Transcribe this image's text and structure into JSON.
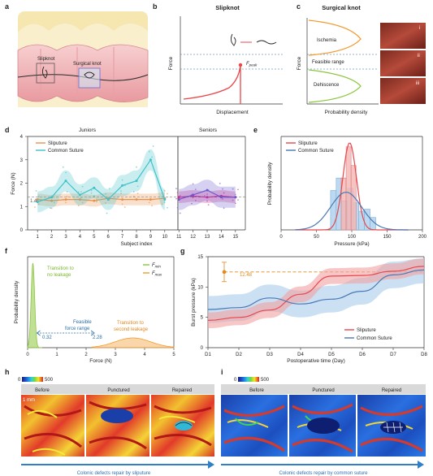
{
  "labels": {
    "a": "a",
    "b": "b",
    "c": "c",
    "d": "d",
    "e": "e",
    "f": "f",
    "g": "g",
    "h": "h",
    "i": "i"
  },
  "panel_a": {
    "slipknot": "Slipknot",
    "surgical": "Surgical knot"
  },
  "panel_b": {
    "title": "Slipknot",
    "xlabel": "Displacement",
    "ylabel": "Force",
    "peak": "F",
    "peak_sub": "peak",
    "colors": {
      "curve": "#e8474c",
      "dash": "#2b6fa8"
    }
  },
  "panel_c": {
    "title": "Surgical knot",
    "xlabel": "Probability density",
    "ylabel": "Force",
    "regions": [
      "Ischemia",
      "Feasible range",
      "Dehiscence"
    ],
    "roman": [
      "i",
      "ii",
      "iii"
    ],
    "colors": {
      "top": "#f29a2e",
      "bottom": "#8cc63f"
    }
  },
  "chart_data": [
    {
      "panel": "d",
      "type": "line",
      "section_titles": [
        "Juniors",
        "Seniors"
      ],
      "xlabel": "Subject index",
      "ylabel": "Force (N)",
      "x": [
        1,
        2,
        3,
        4,
        5,
        6,
        7,
        8,
        9,
        10,
        11,
        12,
        13,
        14,
        15
      ],
      "xlim": [
        0.3,
        15.7
      ],
      "ylim": [
        0,
        4
      ],
      "yticks": [
        0,
        1,
        2,
        3,
        4
      ],
      "reference_label": "1.4",
      "reference_value": 1.4,
      "series": [
        {
          "name": "Sliputure",
          "color": "#e8914a",
          "values": [
            1.3,
            1.25,
            1.3,
            1.3,
            1.25,
            1.35,
            1.3,
            1.3,
            1.3,
            1.35,
            1.4,
            1.45,
            1.4,
            1.45,
            1.4
          ],
          "band": 0.25
        },
        {
          "name": "Common Suture",
          "color": "#3fc1c9",
          "values": [
            1.2,
            1.4,
            2.1,
            1.5,
            1.8,
            1.3,
            1.9,
            2.1,
            3.0,
            1.3,
            1.3,
            1.5,
            1.7,
            1.4,
            1.4
          ],
          "band": 0.45
        }
      ],
      "senior_colors": {
        "sliputure": "#d7268a",
        "suture": "#6a5acd"
      }
    },
    {
      "panel": "e",
      "type": "bar",
      "xlabel": "Pressure (kPa)",
      "ylabel": "Probability density",
      "xlim": [
        0,
        200
      ],
      "xticks": [
        0,
        50,
        100,
        150,
        200
      ],
      "ylim": [
        0,
        0.045
      ],
      "series": [
        {
          "name": "Sliputure",
          "color": "#e8474c",
          "mean": 97,
          "sd": 9.5
        },
        {
          "name": "Common Suture",
          "color": "#4a78b5",
          "mean": 92,
          "sd": 22
        }
      ],
      "hist_sliputure": [
        {
          "x0": 85,
          "x1": 92,
          "h": 0.025
        },
        {
          "x0": 92,
          "x1": 99,
          "h": 0.04
        },
        {
          "x0": 99,
          "x1": 106,
          "h": 0.031
        }
      ],
      "hist_suture": [
        {
          "x0": 70,
          "x1": 78,
          "h": 0.019
        },
        {
          "x0": 78,
          "x1": 86,
          "h": 0.025
        },
        {
          "x0": 86,
          "x1": 94,
          "h": 0.014
        },
        {
          "x0": 94,
          "x1": 102,
          "h": 0.02
        },
        {
          "x0": 102,
          "x1": 110,
          "h": 0.013
        },
        {
          "x0": 110,
          "x1": 118,
          "h": 0.009
        },
        {
          "x0": 118,
          "x1": 126,
          "h": 0.01
        },
        {
          "x0": 126,
          "x1": 134,
          "h": 0.006
        }
      ]
    },
    {
      "panel": "f",
      "type": "area",
      "xlabel": "Force (N)",
      "ylabel": "Probability density",
      "xlim": [
        0,
        5
      ],
      "xticks": [
        0,
        1,
        2,
        3,
        4,
        5
      ],
      "legend": [
        {
          "name": "F",
          "sub": "min",
          "color": "#8cc63f"
        },
        {
          "name": "F",
          "sub": "max",
          "color": "#f29a2e"
        }
      ],
      "annotations": {
        "no_leak_1": "Transition to",
        "no_leak_2": "no leakage",
        "second_1": "Transition to",
        "second_2": "second leakage",
        "feasible_1": "Feasible",
        "feasible_2": "force range",
        "lo": "0.32",
        "hi": "2.28"
      },
      "range": [
        0.32,
        2.28
      ],
      "min_peak": {
        "x": 0.18,
        "width": 0.06
      },
      "max_peak": {
        "x": 3.6,
        "width": 0.6
      }
    },
    {
      "panel": "g",
      "type": "line",
      "xlabel": "Postoperative time (Day)",
      "ylabel": "Burst pressure (kPa)",
      "categories": [
        "D1",
        "D2",
        "D3",
        "D4",
        "D5",
        "D6",
        "D7",
        "D8"
      ],
      "ylim": [
        0,
        15
      ],
      "yticks": [
        0,
        5,
        10,
        15
      ],
      "reference_label": "12.48",
      "reference_value": 12.48,
      "series": [
        {
          "name": "Sliputure",
          "color": "#e8474c",
          "values": [
            4.5,
            5.0,
            6.2,
            8.8,
            11.8,
            11.9,
            12.6,
            13.4
          ],
          "band": 1.3
        },
        {
          "name": "Common Suture",
          "color": "#4a78b5",
          "values": [
            6.3,
            6.6,
            8.2,
            7.2,
            8.0,
            9.3,
            12.0,
            12.8
          ],
          "band": 2.2
        }
      ]
    }
  ],
  "panel_h": {
    "colorbar_min": "0",
    "colorbar_max": "500",
    "headers": [
      "Before",
      "Punctured",
      "Repaired"
    ],
    "caption": "Colonic defects repair by sliputure",
    "scale": "1 mm"
  },
  "panel_i": {
    "colorbar_min": "0",
    "colorbar_max": "500",
    "headers": [
      "Before",
      "Punctured",
      "Repaired"
    ],
    "caption": "Colonic defects repair by common suture"
  }
}
